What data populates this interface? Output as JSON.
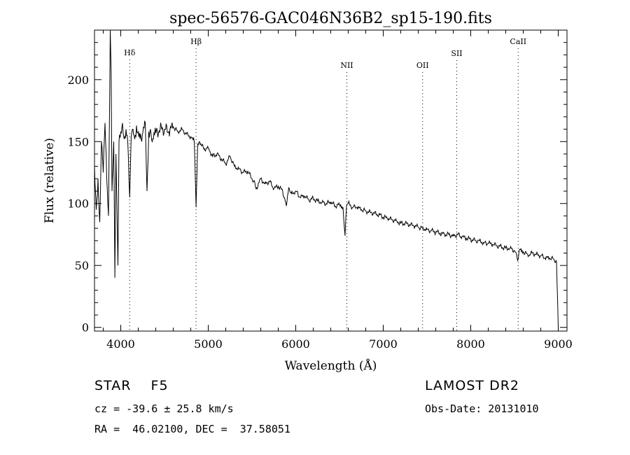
{
  "chart_data": {
    "type": "line",
    "title": "spec-56576-GAC046N36B2_sp15-190.fits",
    "xlabel": "Wavelength (Å)",
    "ylabel": "Flux (relative)",
    "xlim": [
      3700,
      9100
    ],
    "ylim": [
      -3,
      240
    ],
    "xticks": [
      4000,
      5000,
      6000,
      7000,
      8000,
      9000
    ],
    "yticks": [
      0,
      50,
      100,
      150,
      200
    ],
    "grid": false,
    "line_color": "#000000",
    "lines": [
      {
        "label": "Hδ",
        "wavelength": 4102
      },
      {
        "label": "Hβ",
        "wavelength": 4861
      },
      {
        "label": "NII",
        "wavelength": 6584
      },
      {
        "label": "OII",
        "wavelength": 7450
      },
      {
        "label": "SII",
        "wavelength": 7840
      },
      {
        "label": "CaII",
        "wavelength": 8542
      }
    ],
    "series": [
      {
        "x": [
          3700,
          3720,
          3740,
          3760,
          3780,
          3800,
          3820,
          3840,
          3860,
          3880,
          3890,
          3900,
          3920,
          3933,
          3945,
          3968,
          3980,
          4000,
          4020,
          4040,
          4060,
          4080,
          4102,
          4120,
          4140,
          4160,
          4180,
          4200,
          4240,
          4280,
          4300,
          4320,
          4340,
          4360,
          4400,
          4450,
          4500,
          4550,
          4600,
          4650,
          4700,
          4750,
          4800,
          4840,
          4861,
          4880,
          4900,
          4950,
          5000,
          5050,
          5100,
          5150,
          5200,
          5250,
          5300,
          5350,
          5400,
          5450,
          5500,
          5560,
          5600,
          5650,
          5700,
          5750,
          5800,
          5850,
          5893,
          5920,
          5950,
          6000,
          6050,
          6100,
          6150,
          6200,
          6250,
          6300,
          6350,
          6400,
          6450,
          6500,
          6540,
          6563,
          6580,
          6600,
          6650,
          6700,
          6750,
          6800,
          6850,
          6900,
          6950,
          7000,
          7050,
          7100,
          7150,
          7200,
          7250,
          7300,
          7350,
          7400,
          7450,
          7500,
          7550,
          7600,
          7650,
          7700,
          7750,
          7800,
          7850,
          7900,
          7950,
          8000,
          8050,
          8100,
          8150,
          8200,
          8250,
          8300,
          8350,
          8400,
          8450,
          8500,
          8542,
          8560,
          8600,
          8662,
          8700,
          8750,
          8800,
          8850,
          8900,
          8950,
          8980,
          9000
        ],
        "y": [
          130,
          95,
          120,
          85,
          150,
          125,
          165,
          120,
          90,
          240,
          206,
          110,
          150,
          40,
          140,
          50,
          150,
          158,
          165,
          152,
          160,
          150,
          105,
          155,
          160,
          152,
          163,
          158,
          150,
          165,
          110,
          158,
          160,
          150,
          157,
          160,
          160,
          158,
          162,
          158,
          160,
          156,
          154,
          150,
          97,
          148,
          150,
          144,
          145,
          138,
          140,
          136,
          132,
          138,
          130,
          128,
          125,
          126,
          120,
          112,
          120,
          116,
          118,
          112,
          114,
          110,
          98,
          113,
          108,
          110,
          105,
          106,
          103,
          104,
          102,
          101,
          100,
          101,
          98,
          99,
          97,
          74,
          98,
          100,
          97,
          97,
          95,
          94,
          93,
          92,
          91,
          89,
          88,
          87,
          86,
          84,
          84,
          83,
          82,
          81,
          80,
          79,
          78,
          77,
          76,
          75,
          75,
          74,
          75,
          73,
          72,
          71,
          70,
          70,
          68,
          68,
          67,
          66,
          65,
          64,
          64,
          62,
          55,
          63,
          61,
          58,
          60,
          59,
          58,
          56,
          56,
          55,
          53,
          0
        ]
      }
    ]
  },
  "info": {
    "left_line1": "STAR    F5",
    "left_line2": "cz = -39.6 ± 25.8 km/s",
    "left_line3": "RA =  46.02100, DEC =  37.58051",
    "right_line1": "LAMOST DR2",
    "right_line2": "Obs-Date: 20131010"
  }
}
